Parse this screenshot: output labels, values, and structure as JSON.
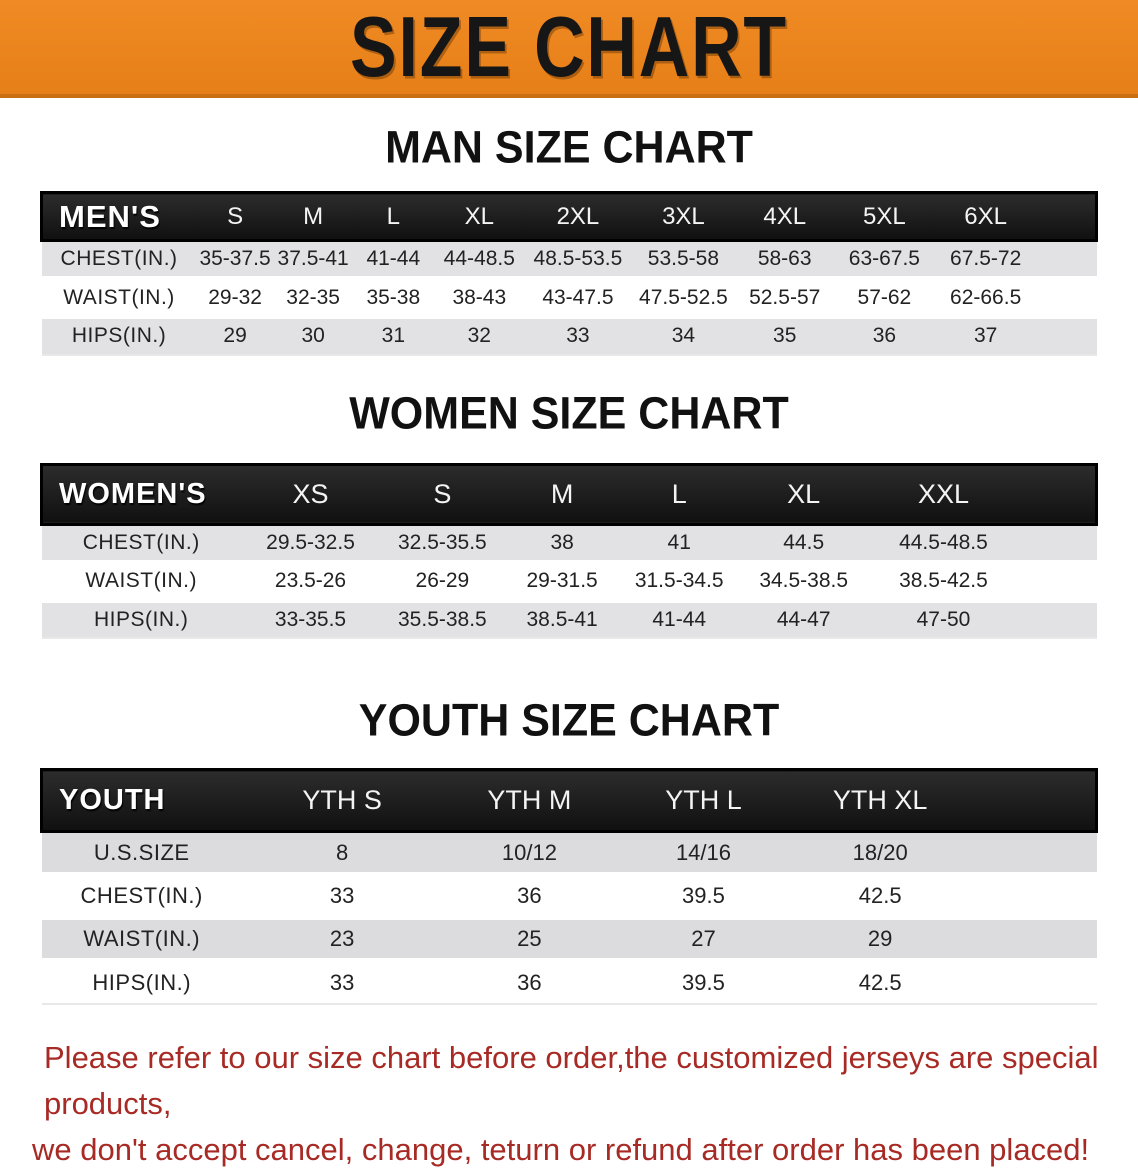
{
  "banner": {
    "title": "SIZE CHART",
    "bg_color": "#E8821E",
    "text_color": "#161616"
  },
  "sections": [
    {
      "heading": "MAN SIZE CHART",
      "table": {
        "label": "MEN'S",
        "sizes": [
          "S",
          "M",
          "L",
          "XL",
          "2XL",
          "3XL",
          "4XL",
          "5XL",
          "6XL"
        ],
        "rows": [
          {
            "label": "CHEST(IN.)",
            "values": [
              "35-37.5",
              "37.5-41",
              "41-44",
              "44-48.5",
              "48.5-53.5",
              "53.5-58",
              "58-63",
              "63-67.5",
              "67.5-72"
            ]
          },
          {
            "label": "WAIST(IN.)",
            "values": [
              "29-32",
              "32-35",
              "35-38",
              "38-43",
              "43-47.5",
              "47.5-52.5",
              "52.5-57",
              "57-62",
              "62-66.5"
            ]
          },
          {
            "label": "HIPS(IN.)",
            "values": [
              "29",
              "30",
              "31",
              "32",
              "33",
              "34",
              "35",
              "36",
              "37"
            ]
          }
        ]
      }
    },
    {
      "heading": "WOMEN SIZE CHART",
      "table": {
        "label": "WOMEN'S",
        "sizes": [
          "XS",
          "S",
          "M",
          "L",
          "XL",
          "XXL"
        ],
        "rows": [
          {
            "label": "CHEST(IN.)",
            "values": [
              "29.5-32.5",
              "32.5-35.5",
              "38",
              "41",
              "44.5",
              "44.5-48.5"
            ]
          },
          {
            "label": "WAIST(IN.)",
            "values": [
              "23.5-26",
              "26-29",
              "29-31.5",
              "31.5-34.5",
              "34.5-38.5",
              "38.5-42.5"
            ]
          },
          {
            "label": "HIPS(IN.)",
            "values": [
              "33-35.5",
              "35.5-38.5",
              "38.5-41",
              "41-44",
              "44-47",
              "47-50"
            ]
          }
        ]
      }
    },
    {
      "heading": "YOUTH SIZE CHART",
      "table": {
        "label": "YOUTH",
        "sizes": [
          "YTH S",
          "YTH M",
          "YTH L",
          "YTH XL"
        ],
        "rows": [
          {
            "label": "U.S.SIZE",
            "values": [
              "8",
              "10/12",
              "14/16",
              "18/20"
            ]
          },
          {
            "label": "CHEST(IN.)",
            "values": [
              "33",
              "36",
              "39.5",
              "42.5"
            ]
          },
          {
            "label": "WAIST(IN.)",
            "values": [
              "23",
              "25",
              "27",
              "29"
            ]
          },
          {
            "label": "HIPS(IN.)",
            "values": [
              "33",
              "36",
              "39.5",
              "42.5"
            ]
          }
        ]
      }
    }
  ],
  "disclaimer": {
    "line1": "Please refer to our size chart before order,the customized jerseys are special products,",
    "line2": "we don't accept cancel, change, teturn or refund after order has been placed!",
    "color": "#A82A25"
  }
}
